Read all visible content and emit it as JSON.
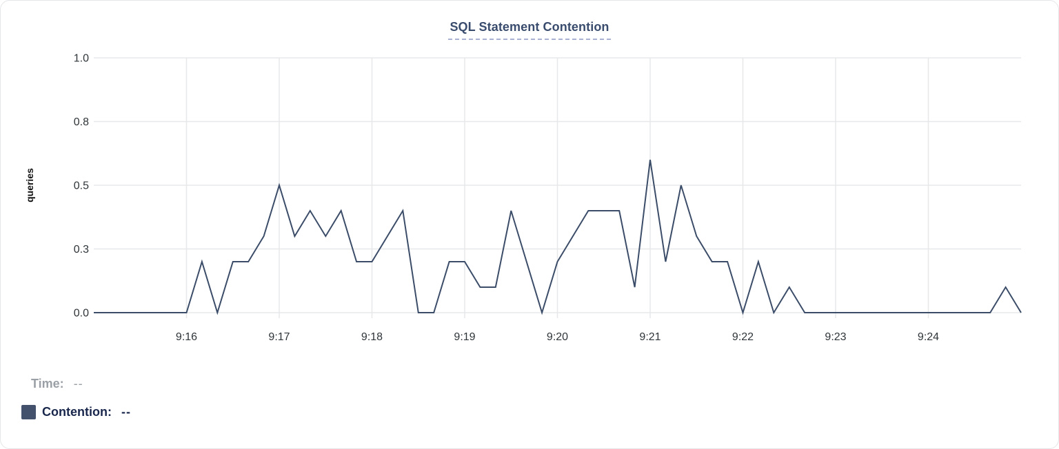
{
  "header": {
    "title": "SQL Statement Contention"
  },
  "chart_data": {
    "type": "line",
    "title": "SQL Statement Contention",
    "xlabel": "",
    "ylabel": "queries",
    "ylim": [
      0,
      1
    ],
    "grid": true,
    "legend_position": "none",
    "x_domain": [
      "9:15:00",
      "9:25:00"
    ],
    "x_ticks": [
      {
        "time": "9:16",
        "label": "9:16"
      },
      {
        "time": "9:17",
        "label": "9:17"
      },
      {
        "time": "9:18",
        "label": "9:18"
      },
      {
        "time": "9:19",
        "label": "9:19"
      },
      {
        "time": "9:20",
        "label": "9:20"
      },
      {
        "time": "9:21",
        "label": "9:21"
      },
      {
        "time": "9:22",
        "label": "9:22"
      },
      {
        "time": "9:23",
        "label": "9:23"
      },
      {
        "time": "9:24",
        "label": "9:24"
      }
    ],
    "y_ticks": [
      {
        "value": 0.0,
        "label": "0.0"
      },
      {
        "value": 0.25,
        "label": "0.3"
      },
      {
        "value": 0.5,
        "label": "0.5"
      },
      {
        "value": 0.75,
        "label": "0.8"
      },
      {
        "value": 1.0,
        "label": "1.0"
      }
    ],
    "series": [
      {
        "name": "Contention",
        "color": "#3b4c68",
        "points": [
          [
            "9:15:00",
            0
          ],
          [
            "9:15:10",
            0
          ],
          [
            "9:15:20",
            0
          ],
          [
            "9:15:30",
            0
          ],
          [
            "9:15:40",
            0
          ],
          [
            "9:15:50",
            0
          ],
          [
            "9:16:00",
            0
          ],
          [
            "9:16:10",
            0.2
          ],
          [
            "9:16:20",
            0
          ],
          [
            "9:16:30",
            0.2
          ],
          [
            "9:16:40",
            0.2
          ],
          [
            "9:16:50",
            0.3
          ],
          [
            "9:17:00",
            0.5
          ],
          [
            "9:17:10",
            0.3
          ],
          [
            "9:17:20",
            0.4
          ],
          [
            "9:17:30",
            0.3
          ],
          [
            "9:17:40",
            0.4
          ],
          [
            "9:17:50",
            0.2
          ],
          [
            "9:18:00",
            0.2
          ],
          [
            "9:18:10",
            0.3
          ],
          [
            "9:18:20",
            0.4
          ],
          [
            "9:18:30",
            0
          ],
          [
            "9:18:40",
            0
          ],
          [
            "9:18:50",
            0.2
          ],
          [
            "9:19:00",
            0.2
          ],
          [
            "9:19:10",
            0.1
          ],
          [
            "9:19:20",
            0.1
          ],
          [
            "9:19:30",
            0.4
          ],
          [
            "9:19:40",
            0.2
          ],
          [
            "9:19:50",
            0
          ],
          [
            "9:20:00",
            0.2
          ],
          [
            "9:20:10",
            0.3
          ],
          [
            "9:20:20",
            0.4
          ],
          [
            "9:20:30",
            0.4
          ],
          [
            "9:20:40",
            0.4
          ],
          [
            "9:20:50",
            0.1
          ],
          [
            "9:21:00",
            0.6
          ],
          [
            "9:21:10",
            0.2
          ],
          [
            "9:21:20",
            0.5
          ],
          [
            "9:21:30",
            0.3
          ],
          [
            "9:21:40",
            0.2
          ],
          [
            "9:21:50",
            0.2
          ],
          [
            "9:22:00",
            0
          ],
          [
            "9:22:10",
            0.2
          ],
          [
            "9:22:20",
            0
          ],
          [
            "9:22:30",
            0.1
          ],
          [
            "9:22:40",
            0
          ],
          [
            "9:22:50",
            0
          ],
          [
            "9:23:00",
            0
          ],
          [
            "9:23:10",
            0
          ],
          [
            "9:23:20",
            0
          ],
          [
            "9:23:30",
            0
          ],
          [
            "9:23:40",
            0
          ],
          [
            "9:23:50",
            0
          ],
          [
            "9:24:00",
            0
          ],
          [
            "9:24:10",
            0
          ],
          [
            "9:24:20",
            0
          ],
          [
            "9:24:30",
            0
          ],
          [
            "9:24:40",
            0
          ],
          [
            "9:24:50",
            0.1
          ],
          [
            "9:25:00",
            0
          ]
        ]
      }
    ]
  },
  "legend": {
    "time_label": "Time:",
    "time_value": "--",
    "contention_label": "Contention:",
    "contention_value": "--",
    "swatch_color": "#44516d"
  },
  "colors": {
    "title": "#3a4c6d",
    "title_underline": "#a9b1d2",
    "line": "#3b4c68",
    "grid": "#e7e8ea",
    "tick_label": "#2e3438",
    "axis_label": "#111111",
    "time_label": "#9aa0a6",
    "contention_label": "#19274c",
    "card_border": "#e5e6e8"
  }
}
